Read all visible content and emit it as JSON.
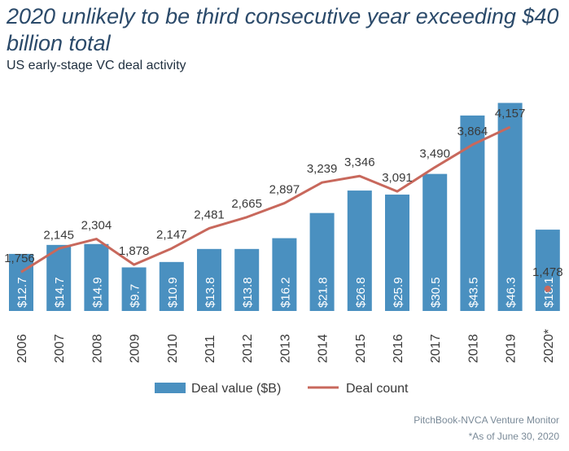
{
  "title": "2020 unlikely to be third consecutive year exceeding $40 billion total",
  "subtitle": "US early-stage VC deal activity",
  "source": "PitchBook-NVCA Venture Monitor",
  "footnote": "*As of June 30, 2020",
  "colors": {
    "bar": "#4a90c0",
    "line": "#c8685c",
    "text": "#3a3a3a",
    "title": "#2b4a6a"
  },
  "chart_data": {
    "type": "bar",
    "categories": [
      "2006",
      "2007",
      "2008",
      "2009",
      "2010",
      "2011",
      "2012",
      "2013",
      "2014",
      "2015",
      "2016",
      "2017",
      "2018",
      "2019",
      "2020*"
    ],
    "series": [
      {
        "name": "Deal value ($B)",
        "type": "bar",
        "values": [
          12.7,
          14.7,
          14.9,
          9.7,
          10.9,
          13.8,
          13.8,
          16.2,
          21.8,
          26.8,
          25.9,
          30.5,
          43.5,
          46.3,
          18.1
        ],
        "labels": [
          "$12.7",
          "$14.7",
          "$14.9",
          "$9.7",
          "$10.9",
          "$13.8",
          "$13.8",
          "$16.2",
          "$21.8",
          "$26.8",
          "$25.9",
          "$30.5",
          "$43.5",
          "$46.3",
          "$18.1"
        ]
      },
      {
        "name": "Deal count",
        "type": "line",
        "values": [
          1756,
          2145,
          2304,
          1878,
          2147,
          2481,
          2665,
          2897,
          3239,
          3346,
          3091,
          3490,
          3864,
          4157,
          1478
        ],
        "labels": [
          "1,756",
          "2,145",
          "2,304",
          "1,878",
          "2,147",
          "2,481",
          "2,665",
          "2,897",
          "3,239",
          "3,346",
          "3,091",
          "3,490",
          "3,864",
          "4,157",
          "1,478"
        ]
      }
    ],
    "legend": {
      "position": "bottom",
      "items": [
        "Deal value ($B)",
        "Deal count"
      ]
    }
  }
}
